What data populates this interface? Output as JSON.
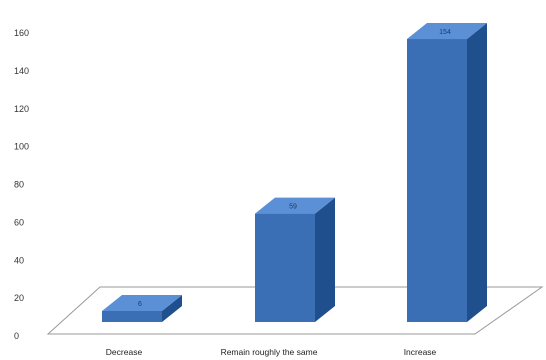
{
  "chart_data": {
    "type": "bar",
    "categories": [
      "Decrease",
      "Remain roughly the same",
      "Increase"
    ],
    "values": [
      6,
      59,
      154
    ],
    "data_labels": [
      "6",
      "59",
      "154"
    ],
    "title": "",
    "xlabel": "",
    "ylabel": "",
    "ylim": [
      0,
      160
    ],
    "yticks": [
      "0",
      "20",
      "40",
      "60",
      "80",
      "100",
      "120",
      "140",
      "160"
    ],
    "style": "3d-column",
    "grid": false,
    "legend": "none",
    "colors": {
      "front": "#3a6fb5",
      "top": "#5b8fd6",
      "side": "#1f4f8c",
      "floor_stroke": "#9a9a9a"
    }
  }
}
